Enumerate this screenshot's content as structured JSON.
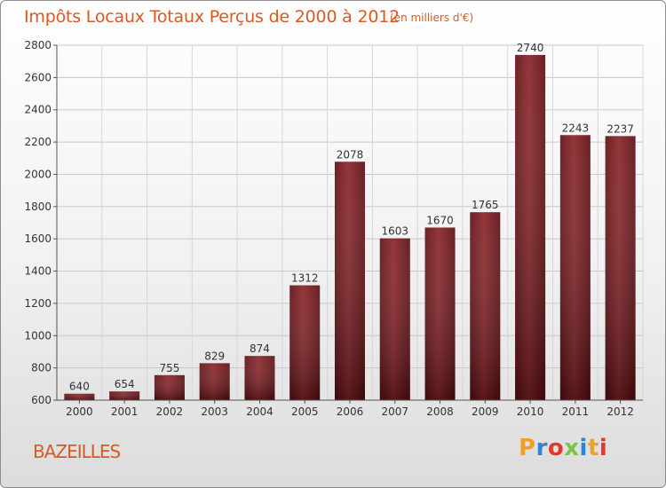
{
  "chart_data": {
    "type": "bar",
    "title": "Impôts Locaux Totaux Perçus de 2000 à 2012",
    "subtitle": "(en milliers d'€)",
    "categories": [
      "2000",
      "2001",
      "2002",
      "2003",
      "2004",
      "2005",
      "2006",
      "2007",
      "2008",
      "2009",
      "2010",
      "2011",
      "2012"
    ],
    "values": [
      640,
      654,
      755,
      829,
      874,
      1312,
      2078,
      1603,
      1670,
      1765,
      2740,
      2243,
      2237
    ],
    "ylim": [
      600,
      2800
    ],
    "yticks": [
      600,
      800,
      1000,
      1200,
      1400,
      1600,
      1800,
      2000,
      2200,
      2400,
      2600,
      2800
    ],
    "xlabel": "",
    "ylabel": "",
    "grid": true,
    "bar_color": "#7a1a1e"
  },
  "location": "BAZEILLES",
  "logo": {
    "letters": [
      "P",
      "r",
      "o",
      "x",
      "i",
      "t",
      "i"
    ]
  }
}
